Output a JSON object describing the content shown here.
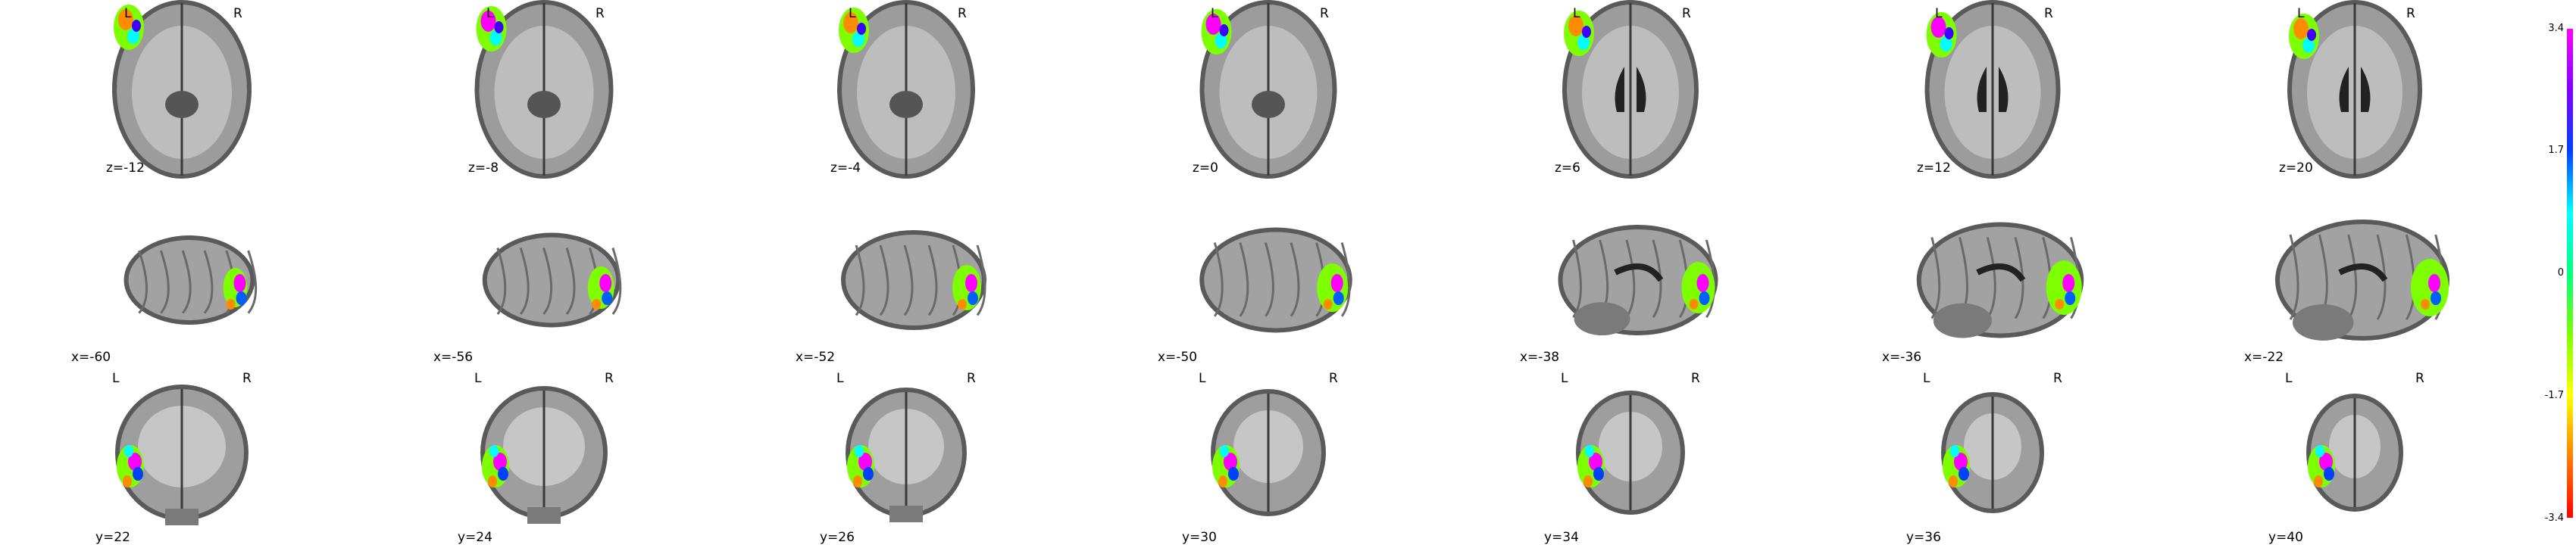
{
  "figure": {
    "rows": [
      {
        "view": "axial",
        "slices": [
          {
            "coord": "z=-12",
            "left": "L",
            "right": "R"
          },
          {
            "coord": "z=-8",
            "left": "L",
            "right": "R"
          },
          {
            "coord": "z=-4",
            "left": "L",
            "right": "R"
          },
          {
            "coord": "z=0",
            "left": "L",
            "right": "R"
          },
          {
            "coord": "z=6",
            "left": "L",
            "right": "R"
          },
          {
            "coord": "z=12",
            "left": "L",
            "right": "R"
          },
          {
            "coord": "z=20",
            "left": "L",
            "right": "R"
          }
        ]
      },
      {
        "view": "sagittal",
        "slices": [
          {
            "coord": "x=-60"
          },
          {
            "coord": "x=-56"
          },
          {
            "coord": "x=-52"
          },
          {
            "coord": "x=-50"
          },
          {
            "coord": "x=-38"
          },
          {
            "coord": "x=-36"
          },
          {
            "coord": "x=-22"
          }
        ]
      },
      {
        "view": "coronal",
        "slices": [
          {
            "coord": "y=22",
            "left": "L",
            "right": "R"
          },
          {
            "coord": "y=24",
            "left": "L",
            "right": "R"
          },
          {
            "coord": "y=26",
            "left": "L",
            "right": "R"
          },
          {
            "coord": "y=30",
            "left": "L",
            "right": "R"
          },
          {
            "coord": "y=34",
            "left": "L",
            "right": "R"
          },
          {
            "coord": "y=36",
            "left": "L",
            "right": "R"
          },
          {
            "coord": "y=40",
            "left": "L",
            "right": "R"
          }
        ]
      }
    ]
  },
  "colorbar": {
    "ticks": [
      "3.4",
      "1.7",
      "0",
      "-1.7",
      "-3.4"
    ],
    "colors": [
      "#ff00ff",
      "#8000ff",
      "#0040ff",
      "#00ffff",
      "#00ff80",
      "#80ff00",
      "#ffff00",
      "#ff8000",
      "#ff0000"
    ]
  }
}
